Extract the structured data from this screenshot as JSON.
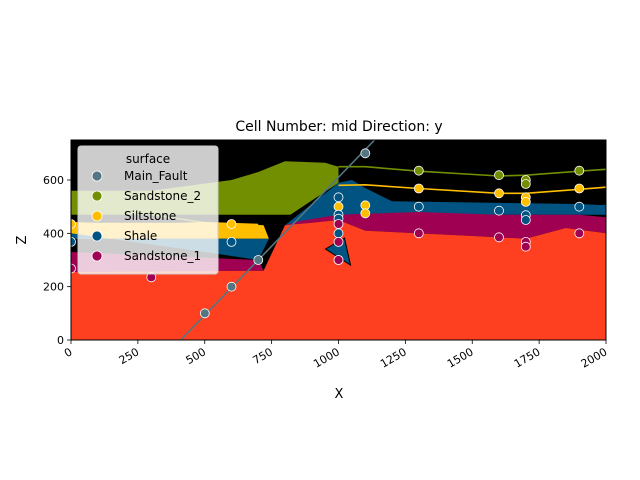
{
  "chart_data": {
    "type": "scatter",
    "title": "Cell Number: mid Direction: y",
    "xlabel": "X",
    "ylabel": "Z",
    "xlim": [
      0,
      2000
    ],
    "ylim": [
      0,
      750
    ],
    "xticks": [
      0,
      250,
      500,
      750,
      1000,
      1250,
      1500,
      1750,
      2000
    ],
    "yticks": [
      0,
      200,
      400,
      600
    ],
    "grid": false,
    "legend": {
      "title": "surface",
      "placement": "upper-left",
      "entries": [
        {
          "name": "Main_Fault",
          "color": "#527682"
        },
        {
          "name": "Sandstone_2",
          "color": "#728f02"
        },
        {
          "name": "Siltstone",
          "color": "#ffbe00"
        },
        {
          "name": "Shale",
          "color": "#015482"
        },
        {
          "name": "Sandstone_1",
          "color": "#9f0052"
        }
      ]
    },
    "layers": [
      {
        "name": "background",
        "color": "#000000"
      },
      {
        "name": "Sandstone_2",
        "color": "#728f02"
      },
      {
        "name": "Siltstone",
        "color": "#ffbe00"
      },
      {
        "name": "Shale",
        "color": "#015482"
      },
      {
        "name": "Sandstone_1",
        "color": "#9f0052"
      },
      {
        "name": "basement",
        "color": "#ff4020"
      }
    ],
    "series": [
      {
        "name": "Main_Fault",
        "color": "#527682",
        "x": [
          500,
          600,
          700,
          1000,
          1100
        ],
        "y": [
          100,
          200,
          300,
          300,
          700
        ]
      },
      {
        "name": "Sandstone_2",
        "color": "#728f02",
        "x": [
          1300,
          1600,
          1700,
          1700,
          1900
        ],
        "y": [
          635,
          618,
          600,
          585,
          635
        ]
      },
      {
        "name": "Siltstone",
        "color": "#ffbe00",
        "x": [
          0,
          600,
          1000,
          1100,
          1100,
          1300,
          1600,
          1700,
          1700,
          1900
        ],
        "y": [
          435,
          435,
          500,
          505,
          475,
          568,
          550,
          535,
          518,
          568
        ]
      },
      {
        "name": "Shale",
        "color": "#015482",
        "x": [
          0,
          600,
          1000,
          1000,
          1000,
          1000,
          1300,
          1600,
          1700,
          1700,
          1900
        ],
        "y": [
          368,
          368,
          535,
          470,
          455,
          400,
          500,
          485,
          468,
          450,
          500
        ]
      },
      {
        "name": "Sandstone_1",
        "color": "#9f0052",
        "x": [
          0,
          300,
          1000,
          1000,
          1000,
          1300,
          1600,
          1700,
          1700,
          1900
        ],
        "y": [
          268,
          235,
          435,
          368,
          300,
          400,
          385,
          368,
          350,
          400
        ]
      }
    ],
    "contacts": {
      "Sandstone_2": {
        "x": [
          1000,
          1100,
          1300,
          1600,
          1700,
          1900,
          2000
        ],
        "y": [
          650,
          650,
          633,
          615,
          618,
          633,
          640
        ]
      },
      "Siltstone": {
        "x": [
          1000,
          1100,
          1300,
          1600,
          1700,
          1900,
          2000
        ],
        "y": [
          580,
          582,
          568,
          550,
          550,
          565,
          573
        ]
      },
      "Shale": {
        "x": [
          1000,
          1100,
          1300,
          1600,
          1700,
          1900,
          2000
        ],
        "y": [
          505,
          505,
          495,
          483,
          483,
          493,
          505
        ]
      },
      "footwall_Sandstone_2": {
        "x": [
          0,
          250,
          500
        ],
        "y": [
          500,
          478,
          440
        ]
      },
      "footwall_Siltstone": {
        "x": [
          0,
          250,
          500,
          700
        ],
        "y": [
          440,
          430,
          440,
          433
        ]
      }
    },
    "fault_trace": {
      "x": [
        410,
        1135
      ],
      "y": [
        0,
        750
      ]
    },
    "orientation_marker": {
      "x": 1000,
      "y": 330,
      "color": "#015482"
    }
  }
}
